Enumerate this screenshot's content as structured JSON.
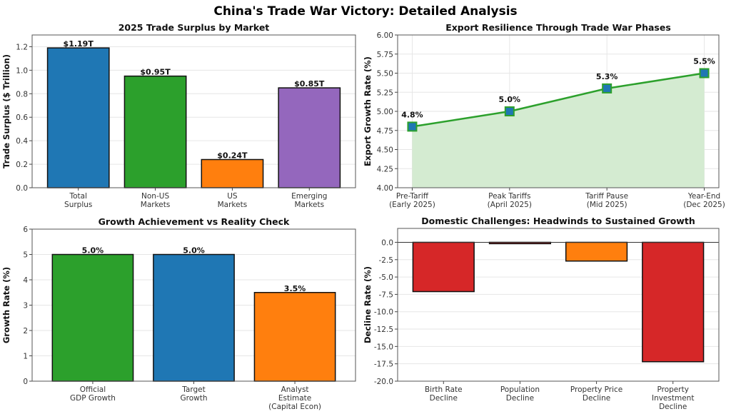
{
  "suptitle": "China's Trade War Victory: Detailed Analysis",
  "chart_data": [
    {
      "type": "bar",
      "title": "2025 Trade Surplus by Market",
      "ylabel": "Trade Surplus ($ Trillion)",
      "xlabel": "",
      "categories": [
        [
          "Total",
          "Surplus"
        ],
        [
          "Non-US",
          "Markets"
        ],
        [
          "US",
          "Markets"
        ],
        [
          "Emerging",
          "Markets"
        ]
      ],
      "values": [
        1.19,
        0.95,
        0.24,
        0.85
      ],
      "labels": [
        "$1.19T",
        "$0.95T",
        "$0.24T",
        "$0.85T"
      ],
      "colors": [
        "#1f77b4",
        "#2ca02c",
        "#ff7f0e",
        "#9467bd"
      ],
      "ylim": [
        0,
        1.3
      ],
      "yticks": [
        0,
        0.2,
        0.4,
        0.6,
        0.8,
        1.0,
        1.2
      ],
      "ytick_labels": [
        "0.0",
        "0.2",
        "0.4",
        "0.6",
        "0.8",
        "1.0",
        "1.2"
      ],
      "grid": "y"
    },
    {
      "type": "line",
      "title": "Export Resilience Through Trade War Phases",
      "ylabel": "Export Growth Rate (%)",
      "xlabel": "",
      "categories": [
        [
          "Pre-Tariff",
          "(Early 2025)"
        ],
        [
          "Peak Tariffs",
          "(April 2025)"
        ],
        [
          "Tariff Pause",
          "(Mid 2025)"
        ],
        [
          "Year-End",
          "(Dec 2025)"
        ]
      ],
      "values": [
        4.8,
        5.0,
        5.3,
        5.5
      ],
      "labels": [
        "4.8%",
        "5.0%",
        "5.3%",
        "5.5%"
      ],
      "line_color": "#2ca02c",
      "marker_color": "#1f77b4",
      "fill_color": "#d4ebd1",
      "ylim": [
        4.0,
        6.0
      ],
      "yticks": [
        4.0,
        4.25,
        4.5,
        4.75,
        5.0,
        5.25,
        5.5,
        5.75,
        6.0
      ],
      "ytick_labels": [
        "4.00",
        "4.25",
        "4.50",
        "4.75",
        "5.00",
        "5.25",
        "5.50",
        "5.75",
        "6.00"
      ],
      "grid": "both"
    },
    {
      "type": "bar",
      "title": "Growth Achievement vs Reality Check",
      "ylabel": "Growth Rate (%)",
      "xlabel": "",
      "categories": [
        [
          "Official",
          "GDP Growth"
        ],
        [
          "Target",
          "Growth"
        ],
        [
          "Analyst",
          "Estimate",
          "(Capital Econ)"
        ]
      ],
      "values": [
        5.0,
        5.0,
        3.5
      ],
      "labels": [
        "5.0%",
        "5.0%",
        "3.5%"
      ],
      "colors": [
        "#2ca02c",
        "#1f77b4",
        "#ff7f0e"
      ],
      "ylim": [
        0,
        6
      ],
      "yticks": [
        0,
        1,
        2,
        3,
        4,
        5,
        6
      ],
      "ytick_labels": [
        "0",
        "1",
        "2",
        "3",
        "4",
        "5",
        "6"
      ],
      "grid": "y"
    },
    {
      "type": "bar",
      "title": "Domestic Challenges: Headwinds to Sustained Growth",
      "ylabel": "Decline Rate (%)",
      "xlabel": "",
      "categories": [
        [
          "Birth Rate",
          "Decline"
        ],
        [
          "Population",
          "Decline"
        ],
        [
          "Property Price",
          "Decline"
        ],
        [
          "Property",
          "Investment",
          "Decline"
        ]
      ],
      "values": [
        -7.1,
        -0.2,
        -2.7,
        -17.2
      ],
      "colors": [
        "#d62728",
        "#d62728",
        "#ff7f0e",
        "#d62728"
      ],
      "ylim": [
        -20,
        2
      ],
      "yticks": [
        0,
        -2.5,
        -5,
        -7.5,
        -10,
        -12.5,
        -15,
        -17.5,
        -20
      ],
      "ytick_labels": [
        "0.0",
        "-2.5",
        "-5.0",
        "-7.5",
        "-10.0",
        "-12.5",
        "-15.0",
        "-17.5",
        "-20.0"
      ],
      "zero_line": true,
      "grid": "y"
    }
  ]
}
